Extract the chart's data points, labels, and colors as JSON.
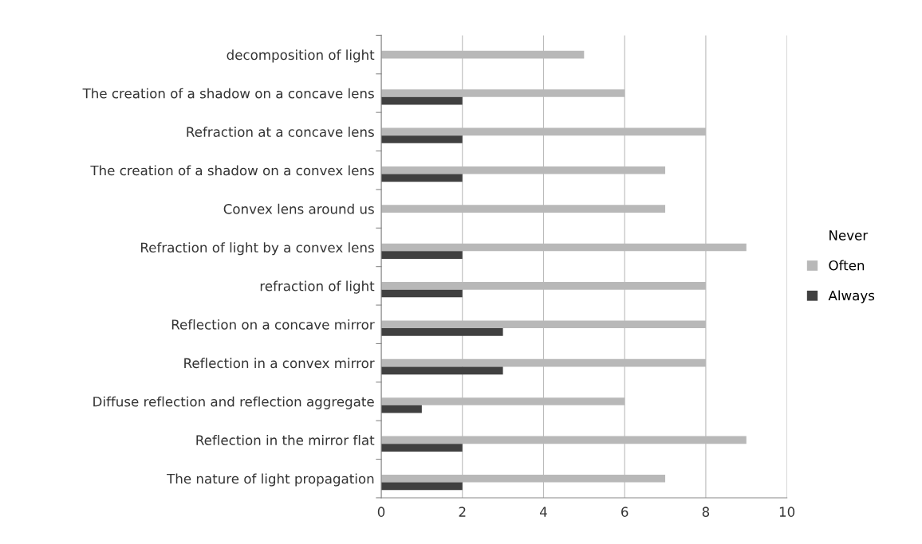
{
  "chart_data": {
    "type": "bar",
    "orientation": "horizontal",
    "categories": [
      "decomposition of light",
      "The creation of a shadow on a concave lens",
      "Refraction at a concave lens",
      "The creation of a shadow on a convex lens",
      "Convex lens around us",
      "Refraction of light by a convex lens",
      "refraction of light",
      "Reflection on a concave mirror",
      "Reflection in a convex mirror",
      "Diffuse reflection and reflection aggregate",
      "Reflection in the mirror flat",
      "The nature of light propagation"
    ],
    "series": [
      {
        "name": "Never",
        "values": [
          0,
          0,
          0,
          0,
          0,
          0,
          0,
          0,
          0,
          0,
          0,
          0
        ]
      },
      {
        "name": "Often",
        "color": "#b8b8b8",
        "values": [
          5,
          6,
          8,
          7,
          7,
          9,
          8,
          8,
          8,
          6,
          9,
          7
        ]
      },
      {
        "name": "Always",
        "color": "#404040",
        "values": [
          0,
          2,
          2,
          2,
          0,
          2,
          2,
          3,
          3,
          1,
          2,
          2
        ]
      }
    ],
    "xlim": [
      0,
      10
    ],
    "xticks": [
      0,
      2,
      4,
      6,
      8,
      10
    ],
    "grid": "x",
    "legend": "right"
  }
}
